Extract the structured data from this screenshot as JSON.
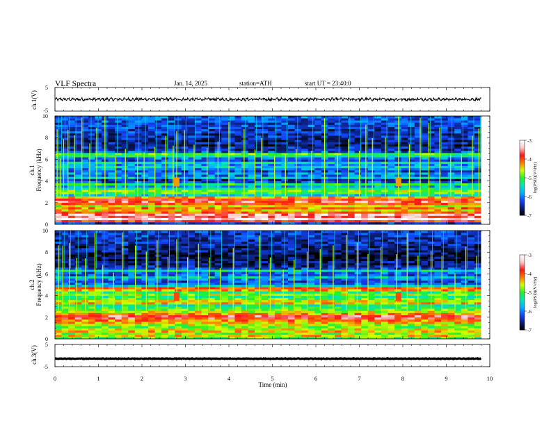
{
  "header": {
    "title": "VLF Spectra",
    "date": "Jan. 14, 2025",
    "station": "station=ATH",
    "start": "start UT = 23:40:0"
  },
  "colors": {
    "colormap": [
      "#000000",
      "#0a1e78",
      "#1446ff",
      "#00b4ff",
      "#00e6b4",
      "#28f028",
      "#d2ff00",
      "#ff7800",
      "#ff1414",
      "#ffc8c8",
      "#ffffff"
    ],
    "trace": "#000000"
  },
  "chart_data": [
    {
      "type": "line",
      "name": "ch1-waveform",
      "ylabel": "ch.1(V)",
      "ylim": [
        -5,
        5
      ],
      "yticks": [
        "5",
        "-5"
      ],
      "baseline": 0,
      "amplitude": 0.7,
      "xlim": [
        0,
        10
      ],
      "x_end": 9.8
    },
    {
      "type": "heatmap",
      "name": "ch1-spectrogram",
      "ylabel_top": "ch.1",
      "ylabel": "Frequency (kHz)",
      "ylim": [
        0,
        10
      ],
      "yticks": [
        "0",
        "2",
        "4",
        "6",
        "8",
        "10"
      ],
      "xlim": [
        0,
        10
      ],
      "x_end": 9.8,
      "colorbar": {
        "label": "log(PSD)(V²/Hz)",
        "range": [
          -7,
          -3
        ],
        "ticks": [
          "-3",
          "-4",
          "-5",
          "-6",
          "-7"
        ]
      },
      "bands_khz": [
        {
          "f": 0.1,
          "v": -6.3
        },
        {
          "f": 0.3,
          "v": -3.9
        },
        {
          "f": 0.5,
          "v": -3.2
        },
        {
          "f": 0.7,
          "v": -3.6
        },
        {
          "f": 0.9,
          "v": -3.4
        },
        {
          "f": 1.1,
          "v": -4.0
        },
        {
          "f": 1.3,
          "v": -4.5
        },
        {
          "f": 1.5,
          "v": -4.2
        },
        {
          "f": 1.7,
          "v": -4.6
        },
        {
          "f": 1.9,
          "v": -4.0
        },
        {
          "f": 2.1,
          "v": -3.6
        },
        {
          "f": 2.3,
          "v": -3.9
        },
        {
          "f": 2.5,
          "v": -4.4
        },
        {
          "f": 2.7,
          "v": -5.6
        },
        {
          "f": 2.9,
          "v": -5.0
        },
        {
          "f": 3.1,
          "v": -4.8
        },
        {
          "f": 3.3,
          "v": -5.3
        },
        {
          "f": 3.5,
          "v": -5.8
        },
        {
          "f": 3.7,
          "v": -5.2
        },
        {
          "f": 3.9,
          "v": -6.2
        },
        {
          "f": 4.1,
          "v": -6.5
        },
        {
          "f": 4.3,
          "v": -5.6
        },
        {
          "f": 4.5,
          "v": -6.1
        },
        {
          "f": 4.7,
          "v": -5.9
        },
        {
          "f": 4.9,
          "v": -6.3
        },
        {
          "f": 5.1,
          "v": -6.0
        },
        {
          "f": 5.3,
          "v": -5.6
        },
        {
          "f": 5.5,
          "v": -5.9
        },
        {
          "f": 5.7,
          "v": -5.5
        },
        {
          "f": 5.9,
          "v": -6.3
        },
        {
          "f": 6.1,
          "v": -6.0
        },
        {
          "f": 6.3,
          "v": -5.3
        },
        {
          "f": 6.5,
          "v": -5.0
        },
        {
          "f": 6.7,
          "v": -6.2
        },
        {
          "f": 6.9,
          "v": -6.5
        },
        {
          "f": 7.1,
          "v": -6.4
        },
        {
          "f": 7.3,
          "v": -6.7
        },
        {
          "f": 7.5,
          "v": -6.5
        },
        {
          "f": 7.7,
          "v": -6.6
        },
        {
          "f": 7.9,
          "v": -6.5
        },
        {
          "f": 8.1,
          "v": -6.4
        },
        {
          "f": 8.3,
          "v": -6.5
        },
        {
          "f": 8.5,
          "v": -6.3
        },
        {
          "f": 8.7,
          "v": -6.4
        },
        {
          "f": 8.9,
          "v": -6.3
        },
        {
          "f": 9.1,
          "v": -6.2
        },
        {
          "f": 9.3,
          "v": -6.3
        },
        {
          "f": 9.5,
          "v": -6.2
        },
        {
          "f": 9.7,
          "v": -6.2
        },
        {
          "f": 9.9,
          "v": -6.1
        }
      ],
      "spheric_times_min": [
        0.05,
        0.12,
        0.2,
        0.3,
        0.45,
        0.62,
        0.8,
        0.96,
        1.15,
        1.4,
        1.62,
        1.9,
        2.05,
        2.3,
        2.55,
        2.72,
        2.8,
        2.98,
        3.2,
        3.5,
        3.75,
        4.0,
        4.35,
        4.6,
        4.75,
        5.05,
        5.3,
        5.55,
        5.9,
        6.2,
        6.5,
        6.75,
        7.0,
        7.15,
        7.3,
        7.6,
        7.9,
        8.15,
        8.4,
        8.6,
        8.85,
        9.1,
        9.35,
        9.6,
        9.75
      ],
      "bursts": [
        {
          "t": 2.8,
          "f": 3.9,
          "v": -4.3
        },
        {
          "t": 7.9,
          "f": 3.9,
          "v": -4.3
        }
      ]
    },
    {
      "type": "heatmap",
      "name": "ch2-spectrogram",
      "ylabel_top": "ch.2",
      "ylabel": "Frequency (kHz)",
      "ylim": [
        0,
        10
      ],
      "yticks": [
        "0",
        "2",
        "4",
        "6",
        "8",
        "10"
      ],
      "xlim": [
        0,
        10
      ],
      "x_end": 9.8,
      "colorbar": {
        "label": "log(PSD)(V²/Hz)",
        "range": [
          -7,
          -3
        ],
        "ticks": [
          "-3",
          "-4",
          "-5",
          "-6",
          "-7"
        ]
      },
      "bands_khz": [
        {
          "f": 0.1,
          "v": -5.0
        },
        {
          "f": 0.3,
          "v": -4.5
        },
        {
          "f": 0.5,
          "v": -4.8
        },
        {
          "f": 0.7,
          "v": -4.4
        },
        {
          "f": 0.9,
          "v": -4.6
        },
        {
          "f": 1.1,
          "v": -4.9
        },
        {
          "f": 1.3,
          "v": -4.7
        },
        {
          "f": 1.5,
          "v": -4.4
        },
        {
          "f": 1.7,
          "v": -4.2
        },
        {
          "f": 1.9,
          "v": -3.8
        },
        {
          "f": 2.1,
          "v": -3.7
        },
        {
          "f": 2.3,
          "v": -4.3
        },
        {
          "f": 2.5,
          "v": -4.6
        },
        {
          "f": 2.7,
          "v": -4.9
        },
        {
          "f": 2.9,
          "v": -5.1
        },
        {
          "f": 3.1,
          "v": -5.3
        },
        {
          "f": 3.3,
          "v": -4.4
        },
        {
          "f": 3.5,
          "v": -4.6
        },
        {
          "f": 3.7,
          "v": -4.9
        },
        {
          "f": 3.9,
          "v": -5.2
        },
        {
          "f": 4.1,
          "v": -4.7
        },
        {
          "f": 4.3,
          "v": -5.1
        },
        {
          "f": 4.5,
          "v": -4.3
        },
        {
          "f": 4.7,
          "v": -4.0
        },
        {
          "f": 4.9,
          "v": -5.6
        },
        {
          "f": 5.1,
          "v": -6.1
        },
        {
          "f": 5.3,
          "v": -6.3
        },
        {
          "f": 5.5,
          "v": -6.0
        },
        {
          "f": 5.7,
          "v": -5.6
        },
        {
          "f": 5.9,
          "v": -6.2
        },
        {
          "f": 6.1,
          "v": -6.1
        },
        {
          "f": 6.3,
          "v": -5.4
        },
        {
          "f": 6.5,
          "v": -6.3
        },
        {
          "f": 6.7,
          "v": -6.5
        },
        {
          "f": 6.9,
          "v": -6.7
        },
        {
          "f": 7.1,
          "v": -6.6
        },
        {
          "f": 7.3,
          "v": -6.8
        },
        {
          "f": 7.5,
          "v": -6.7
        },
        {
          "f": 7.7,
          "v": -6.8
        },
        {
          "f": 7.9,
          "v": -6.7
        },
        {
          "f": 8.1,
          "v": -6.6
        },
        {
          "f": 8.3,
          "v": -6.5
        },
        {
          "f": 8.5,
          "v": -6.6
        },
        {
          "f": 8.7,
          "v": -6.5
        },
        {
          "f": 8.9,
          "v": -6.4
        },
        {
          "f": 9.1,
          "v": -6.5
        },
        {
          "f": 9.3,
          "v": -6.4
        },
        {
          "f": 9.5,
          "v": -6.3
        },
        {
          "f": 9.7,
          "v": -6.4
        },
        {
          "f": 9.9,
          "v": -6.3
        }
      ],
      "spheric_times_min": [
        0.08,
        0.18,
        0.33,
        0.5,
        0.7,
        0.92,
        1.1,
        1.35,
        1.55,
        1.85,
        2.1,
        2.35,
        2.6,
        2.8,
        3.05,
        3.3,
        3.55,
        3.8,
        4.1,
        4.4,
        4.7,
        4.95,
        5.25,
        5.5,
        5.8,
        6.1,
        6.4,
        6.7,
        6.95,
        7.2,
        7.5,
        7.85,
        8.1,
        8.35,
        8.65,
        8.9,
        9.2,
        9.45,
        9.7
      ],
      "bursts": [
        {
          "t": 2.8,
          "f": 3.9,
          "v": -4.0
        },
        {
          "t": 7.9,
          "f": 3.9,
          "v": -4.0
        }
      ]
    },
    {
      "type": "line",
      "name": "ch3-waveform",
      "ylabel": "ch.3(V)",
      "ylim": [
        -5,
        5
      ],
      "yticks": [
        "5",
        "-5"
      ],
      "baseline": -1.4,
      "amplitude": 0.15,
      "xlim": [
        0,
        10
      ],
      "x_end": 9.8,
      "xlabel": "Time (min)",
      "xticks": [
        "0",
        "1",
        "2",
        "3",
        "4",
        "5",
        "6",
        "7",
        "8",
        "9",
        "10"
      ]
    }
  ]
}
